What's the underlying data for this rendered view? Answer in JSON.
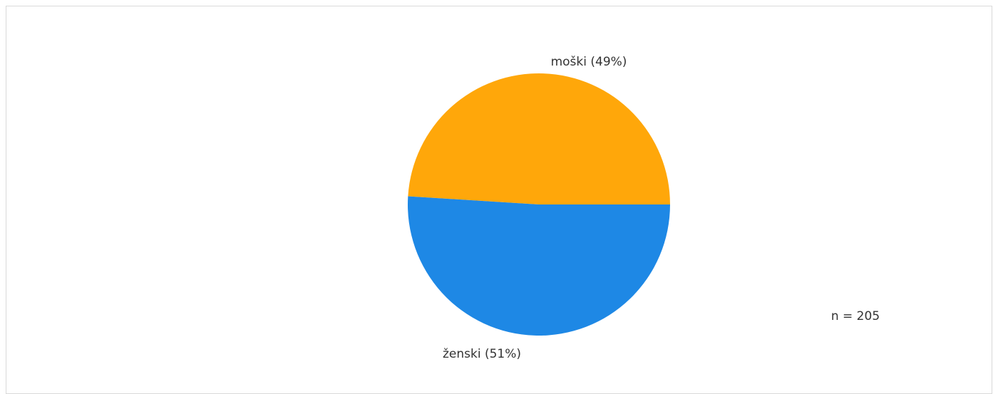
{
  "chart_data": {
    "type": "pie",
    "slices": [
      {
        "label": "moški (49%)",
        "category": "moški",
        "percent": 49,
        "color": "#FFA70A"
      },
      {
        "label": "ženski (51%)",
        "category": "ženski",
        "percent": 51,
        "color": "#1E88E5"
      }
    ],
    "n_label": "n = 205",
    "n": 205
  }
}
